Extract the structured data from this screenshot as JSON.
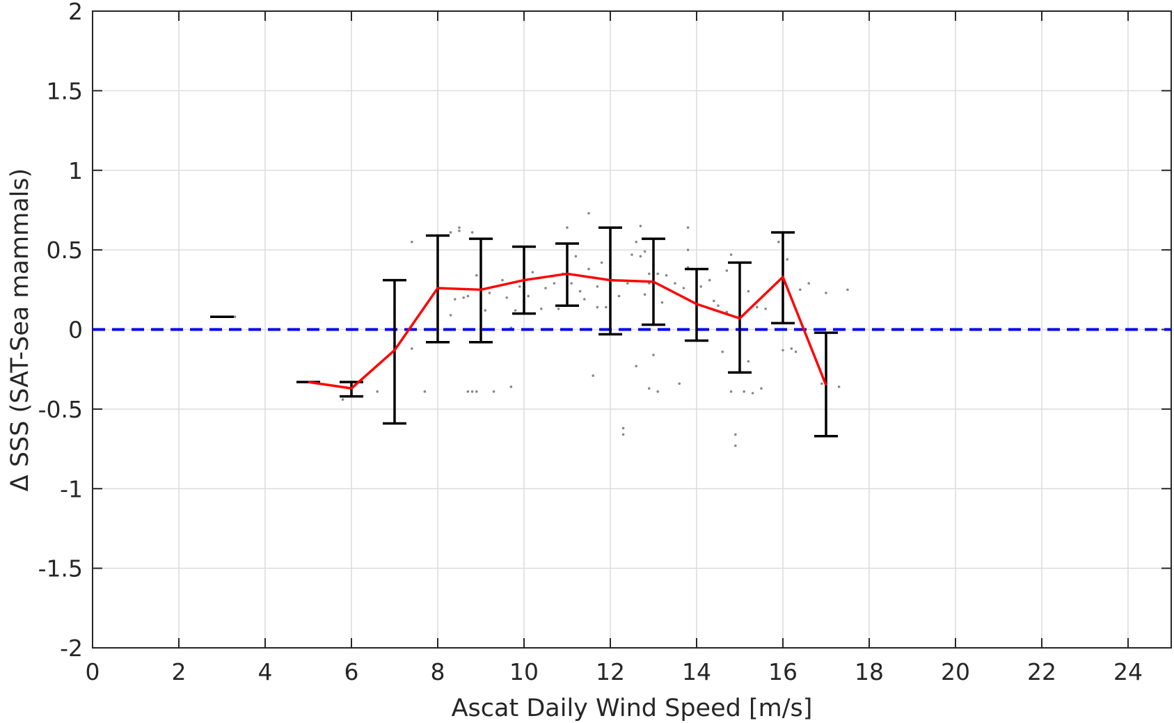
{
  "chart_data": {
    "type": "scatter",
    "xlabel": "Ascat Daily Wind Speed [m/s]",
    "ylabel": "Δ SSS (SAT-Sea mammals)",
    "xlim": [
      0,
      25
    ],
    "ylim": [
      -2,
      2
    ],
    "x_ticks": [
      0,
      2,
      4,
      6,
      8,
      10,
      12,
      14,
      16,
      18,
      20,
      22,
      24
    ],
    "y_ticks": [
      -2,
      -1.5,
      -1,
      -0.5,
      0,
      0.5,
      1,
      1.5,
      2
    ],
    "x_tick_labels": [
      "0",
      "2",
      "4",
      "6",
      "8",
      "10",
      "12",
      "14",
      "16",
      "18",
      "20",
      "22",
      "24"
    ],
    "y_tick_labels": [
      "-2",
      "-1.5",
      "-1",
      "-0.5",
      "0",
      "0.5",
      "1",
      "1.5",
      "2"
    ],
    "grid": true,
    "reference_line": {
      "y": 0,
      "style": "dashed",
      "color": "#0000ee"
    },
    "mean_line": {
      "color": "#ff0000",
      "x": [
        5,
        6,
        7,
        8,
        9,
        10,
        11,
        12,
        13,
        14,
        15,
        16,
        17
      ],
      "y": [
        -0.33,
        -0.37,
        -0.13,
        0.26,
        0.25,
        0.31,
        0.35,
        0.31,
        0.3,
        0.16,
        0.07,
        0.33,
        -0.35
      ]
    },
    "error_bars": {
      "color": "#000000",
      "x": [
        3,
        5,
        6,
        7,
        8,
        9,
        10,
        11,
        12,
        13,
        14,
        15,
        16,
        17
      ],
      "lower": [
        0.08,
        -0.33,
        -0.42,
        -0.59,
        -0.08,
        -0.08,
        0.1,
        0.15,
        -0.03,
        0.03,
        -0.07,
        -0.27,
        0.04,
        -0.67
      ],
      "upper": [
        0.08,
        -0.33,
        -0.33,
        0.31,
        0.59,
        0.57,
        0.52,
        0.54,
        0.64,
        0.57,
        0.38,
        0.42,
        0.61,
        -0.02
      ]
    },
    "scatter_points": {
      "color": "#888888",
      "points": [
        [
          3.3,
          0.08
        ],
        [
          5.8,
          -0.44
        ],
        [
          6.6,
          -0.39
        ],
        [
          7.0,
          0.11
        ],
        [
          7.4,
          -0.12
        ],
        [
          7.4,
          0.55
        ],
        [
          7.7,
          -0.39
        ],
        [
          8.3,
          0.09
        ],
        [
          8.3,
          0.61
        ],
        [
          8.4,
          0.19
        ],
        [
          8.5,
          0.64
        ],
        [
          8.5,
          0.62
        ],
        [
          8.6,
          0.2
        ],
        [
          8.7,
          0.21
        ],
        [
          8.7,
          -0.39
        ],
        [
          8.8,
          -0.39
        ],
        [
          8.8,
          0.61
        ],
        [
          8.9,
          -0.39
        ],
        [
          8.9,
          0.34
        ],
        [
          9.1,
          0.12
        ],
        [
          9.2,
          0.23
        ],
        [
          9.3,
          -0.39
        ],
        [
          9.5,
          0.31
        ],
        [
          9.6,
          0.2
        ],
        [
          9.7,
          -0.36
        ],
        [
          9.7,
          0.01
        ],
        [
          9.8,
          0.12
        ],
        [
          9.9,
          0.27
        ],
        [
          10.1,
          0.21
        ],
        [
          10.2,
          0.36
        ],
        [
          10.4,
          0.13
        ],
        [
          10.5,
          0.26
        ],
        [
          10.7,
          0.29
        ],
        [
          10.8,
          0.13
        ],
        [
          10.9,
          0.35
        ],
        [
          11.0,
          0.64
        ],
        [
          11.1,
          0.29
        ],
        [
          11.2,
          0.46
        ],
        [
          11.3,
          0.24
        ],
        [
          11.4,
          0.19
        ],
        [
          11.5,
          0.73
        ],
        [
          11.5,
          0.38
        ],
        [
          11.6,
          -0.29
        ],
        [
          11.7,
          0.14
        ],
        [
          11.7,
          0.27
        ],
        [
          11.8,
          0.42
        ],
        [
          11.9,
          0.14
        ],
        [
          12.0,
          0.4
        ],
        [
          12.1,
          -0.03
        ],
        [
          12.2,
          0.21
        ],
        [
          12.3,
          -0.62
        ],
        [
          12.3,
          -0.66
        ],
        [
          12.4,
          0.29
        ],
        [
          12.5,
          0.47
        ],
        [
          12.6,
          0.55
        ],
        [
          12.6,
          -0.23
        ],
        [
          12.7,
          0.65
        ],
        [
          12.7,
          0.46
        ],
        [
          12.8,
          0.22
        ],
        [
          12.8,
          0.49
        ],
        [
          12.9,
          0.35
        ],
        [
          12.9,
          0.29
        ],
        [
          12.9,
          -0.37
        ],
        [
          13.0,
          0.41
        ],
        [
          13.0,
          -0.16
        ],
        [
          13.1,
          -0.39
        ],
        [
          13.1,
          0.35
        ],
        [
          13.2,
          0.17
        ],
        [
          13.3,
          0.34
        ],
        [
          13.5,
          0.29
        ],
        [
          13.6,
          -0.34
        ],
        [
          13.7,
          0.26
        ],
        [
          13.8,
          0.39
        ],
        [
          13.8,
          0.64
        ],
        [
          13.8,
          0.5
        ],
        [
          14.0,
          0.06
        ],
        [
          14.1,
          0.27
        ],
        [
          14.3,
          0.31
        ],
        [
          14.4,
          0.18
        ],
        [
          14.5,
          0.15
        ],
        [
          14.6,
          -0.14
        ],
        [
          14.7,
          0.11
        ],
        [
          14.7,
          0.37
        ],
        [
          14.8,
          0.47
        ],
        [
          14.8,
          -0.39
        ],
        [
          14.9,
          -0.66
        ],
        [
          14.9,
          -0.73
        ],
        [
          15.0,
          0.12
        ],
        [
          15.1,
          -0.39
        ],
        [
          15.2,
          0.24
        ],
        [
          15.2,
          -0.2
        ],
        [
          15.3,
          -0.4
        ],
        [
          15.4,
          0.14
        ],
        [
          15.5,
          -0.37
        ],
        [
          15.6,
          0.13
        ],
        [
          15.9,
          0.55
        ],
        [
          16.0,
          -0.13
        ],
        [
          16.1,
          0.44
        ],
        [
          16.2,
          -0.12
        ],
        [
          16.3,
          -0.14
        ],
        [
          16.4,
          0.25
        ],
        [
          16.6,
          0.29
        ],
        [
          16.9,
          -0.34
        ],
        [
          17.0,
          0.23
        ],
        [
          17.3,
          -0.36
        ],
        [
          17.5,
          0.25
        ]
      ]
    }
  }
}
